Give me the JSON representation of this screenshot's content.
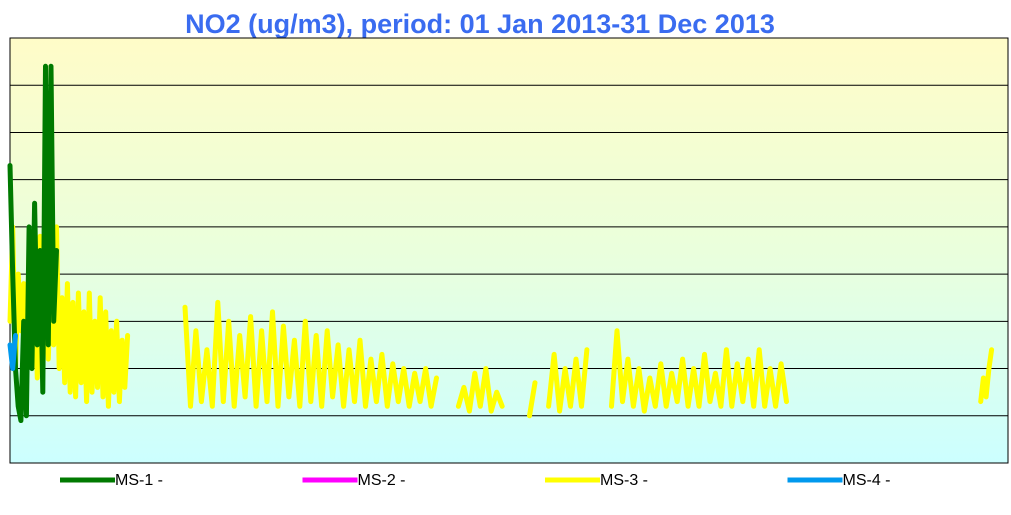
{
  "chart_data": {
    "type": "line",
    "title": "NO2 (ug/m3), period: 01 Jan 2013-31 Dec 2013",
    "xlim": [
      0,
      365
    ],
    "ylim": [
      0,
      90
    ],
    "yticks": [
      0,
      10,
      20,
      30,
      40,
      50,
      60,
      70,
      80,
      90
    ],
    "grid": true,
    "legend": "bottom",
    "series": [
      {
        "name": "MS-1 -",
        "color": "#007a00",
        "x": [
          0,
          1,
          2,
          3,
          4,
          5,
          6,
          7,
          8,
          9,
          10,
          11,
          12,
          13,
          14,
          15,
          16,
          17
        ],
        "values": [
          63,
          40,
          20,
          12,
          9,
          30,
          10,
          50,
          20,
          55,
          25,
          45,
          15,
          84,
          25,
          84,
          30,
          45
        ]
      },
      {
        "name": "MS-2 -",
        "color": "#ff00ff",
        "x": [],
        "values": []
      },
      {
        "name": "MS-3 -",
        "color": "#ffff00",
        "x": [
          0,
          1,
          2,
          3,
          4,
          5,
          6,
          7,
          8,
          9,
          10,
          11,
          12,
          13,
          14,
          15,
          16,
          17,
          18,
          19,
          20,
          21,
          22,
          23,
          24,
          25,
          26,
          27,
          28,
          29,
          30,
          31,
          32,
          33,
          34,
          35,
          36,
          37,
          38,
          39,
          40,
          41,
          42,
          43,
          44,
          64,
          66,
          68,
          70,
          72,
          74,
          76,
          78,
          80,
          82,
          84,
          86,
          88,
          90,
          92,
          94,
          96,
          98,
          100,
          102,
          104,
          106,
          108,
          110,
          112,
          114,
          116,
          118,
          120,
          122,
          124,
          126,
          128,
          130,
          132,
          134,
          136,
          138,
          140,
          142,
          144,
          146,
          148,
          150,
          152,
          154,
          156,
          158,
          164,
          166,
          168,
          170,
          172,
          174,
          176,
          178,
          180,
          182,
          190,
          192,
          194,
          197,
          199,
          201,
          203,
          205,
          207,
          209,
          211,
          213,
          220,
          222,
          224,
          226,
          228,
          230,
          232,
          234,
          236,
          238,
          240,
          242,
          244,
          246,
          248,
          250,
          252,
          254,
          256,
          258,
          260,
          262,
          264,
          266,
          268,
          270,
          272,
          274,
          276,
          278,
          280,
          282,
          284,
          290,
          355,
          356,
          357,
          358,
          359
        ],
        "values": [
          30,
          50,
          20,
          40,
          28,
          38,
          22,
          45,
          25,
          40,
          18,
          48,
          20,
          46,
          22,
          40,
          25,
          50,
          20,
          35,
          17,
          38,
          15,
          34,
          14,
          36,
          17,
          32,
          13,
          36,
          15,
          30,
          16,
          35,
          14,
          32,
          12,
          28,
          15,
          30,
          13,
          26,
          16,
          27,
          null,
          33,
          12,
          28,
          13,
          24,
          12,
          34,
          13,
          30,
          12,
          27,
          14,
          31,
          12,
          28,
          13,
          32,
          12,
          29,
          14,
          26,
          12,
          30,
          13,
          27,
          12,
          28,
          14,
          25,
          12,
          24,
          13,
          26,
          12,
          22,
          13,
          23,
          12,
          21,
          13,
          20,
          12,
          19,
          13,
          20,
          12,
          18,
          null,
          12,
          16,
          11,
          19,
          12,
          20,
          11,
          15,
          12,
          null,
          10,
          17,
          null,
          12,
          23,
          11,
          20,
          12,
          22,
          12,
          24,
          null,
          12,
          28,
          13,
          22,
          12,
          20,
          11,
          18,
          12,
          21,
          12,
          19,
          13,
          22,
          12,
          20,
          12,
          23,
          13,
          19,
          12,
          24,
          12,
          21,
          13,
          22,
          12,
          24,
          12,
          20,
          12,
          21,
          13,
          null,
          13,
          18,
          14,
          20,
          24
        ]
      },
      {
        "name": "MS-4 -",
        "color": "#0099ee",
        "x": [
          0,
          1,
          2
        ],
        "values": [
          25,
          20,
          27
        ]
      }
    ]
  }
}
